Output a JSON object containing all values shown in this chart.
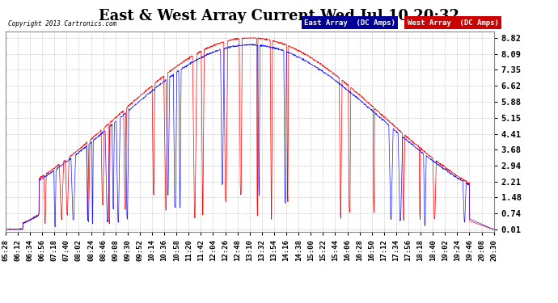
{
  "title": "East & West Array Current Wed Jul 10 20:32",
  "copyright": "Copyright 2013 Cartronics.com",
  "legend_east": "East Array  (DC Amps)",
  "legend_west": "West Array  (DC Amps)",
  "color_east": "#0000ff",
  "color_west": "#ff0000",
  "legend_bg_east": "#000099",
  "legend_bg_west": "#cc0000",
  "yticks": [
    0.01,
    0.74,
    1.48,
    2.21,
    2.94,
    3.68,
    4.41,
    5.15,
    5.88,
    6.62,
    7.35,
    8.09,
    8.82
  ],
  "ymin": 0.01,
  "ymax": 8.82,
  "xtick_labels": [
    "05:28",
    "06:12",
    "06:34",
    "06:56",
    "07:18",
    "07:40",
    "08:02",
    "08:24",
    "08:46",
    "09:08",
    "09:30",
    "09:52",
    "10:14",
    "10:36",
    "10:58",
    "11:20",
    "11:42",
    "12:04",
    "12:26",
    "12:48",
    "13:10",
    "13:32",
    "13:54",
    "14:16",
    "14:38",
    "15:00",
    "15:22",
    "15:44",
    "16:06",
    "16:28",
    "16:50",
    "17:12",
    "17:34",
    "17:56",
    "18:18",
    "18:40",
    "19:02",
    "19:24",
    "19:46",
    "20:08",
    "20:30"
  ],
  "bg_color": "#ffffff",
  "plot_bg_color": "#ffffff",
  "grid_color": "#aaaaaa",
  "title_fontsize": 13,
  "tick_fontsize": 7.5
}
